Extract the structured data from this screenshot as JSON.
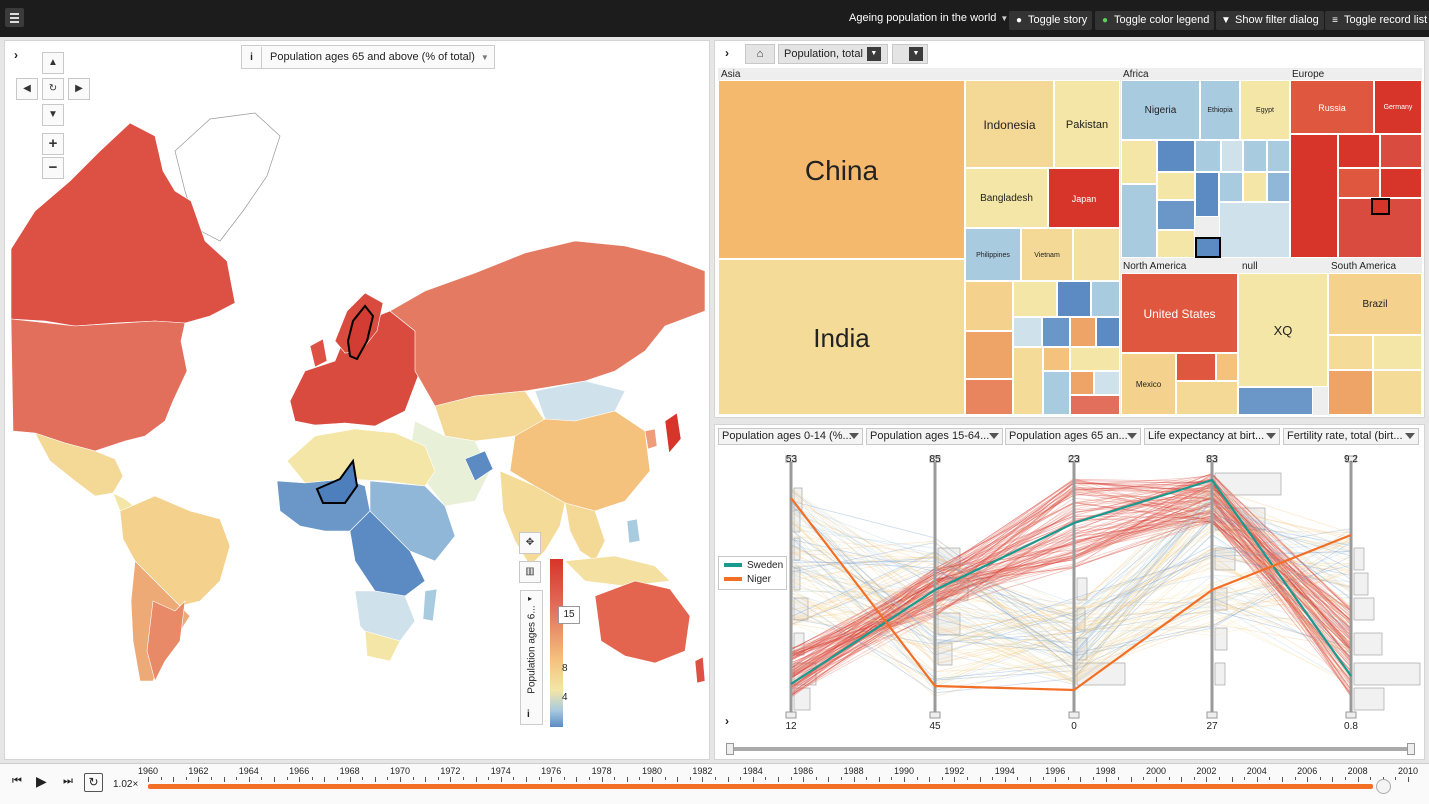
{
  "app": {
    "story_title": "Ageing population in the world",
    "buttons": {
      "toggle_story": "Toggle story",
      "toggle_color_legend": "Toggle color legend",
      "show_filter_dialog": "Show filter dialog",
      "toggle_record_list": "Toggle record list"
    }
  },
  "map": {
    "indicator": "Population ages 65 and above (% of total)",
    "legend_label": "Population ages 6...",
    "legend_ticks": [
      "15",
      "8",
      "4"
    ],
    "colors": {
      "high": "#d7342a",
      "upper": "#e2705d",
      "mid": "#f4c27d",
      "pale": "#f4e6a6",
      "low": "#a9cbe0",
      "lowest": "#5b8bc2"
    },
    "highlighted_countries": [
      "Sweden",
      "Niger"
    ]
  },
  "treemap": {
    "breadcrumb": "Population, total",
    "groups": [
      "Asia",
      "Africa",
      "Europe",
      "North America",
      "null",
      "South America"
    ],
    "labels": {
      "china": "China",
      "india": "India",
      "indonesia": "Indonesia",
      "pakistan": "Pakistan",
      "bangladesh": "Bangladesh",
      "japan": "Japan",
      "philippines": "Philippines",
      "vietnam": "Vietnam",
      "nigeria": "Nigeria",
      "ethiopia": "Ethiopia",
      "egypt": "Egypt",
      "russia": "Russia",
      "germany": "Germany",
      "united_states": "United States",
      "mexico": "Mexico",
      "xq": "XQ",
      "brazil": "Brazil"
    }
  },
  "parallel": {
    "axes": [
      {
        "header": "Population ages 0-14 (%...",
        "max": "53",
        "min": "12"
      },
      {
        "header": "Population ages 15-64...",
        "max": "85",
        "min": "45"
      },
      {
        "header": "Population ages 65 an...",
        "max": "23",
        "min": "0"
      },
      {
        "header": "Life expectancy at birt...",
        "max": "83",
        "min": "27"
      },
      {
        "header": "Fertility rate, total (birt...",
        "max": "9.2",
        "min": "0.8"
      }
    ],
    "legend": [
      {
        "name": "Sweden",
        "color": "#1a9a8e"
      },
      {
        "name": "Niger",
        "color": "#f36f25"
      }
    ]
  },
  "timeline": {
    "speed": "1.02×",
    "years": [
      "1960",
      "1962",
      "1964",
      "1966",
      "1968",
      "1970",
      "1972",
      "1974",
      "1976",
      "1978",
      "1980",
      "1982",
      "1984",
      "1986",
      "1988",
      "1990",
      "1992",
      "1994",
      "1996",
      "1998",
      "2000",
      "2002",
      "2004",
      "2006",
      "2008",
      "2010"
    ],
    "progress": 0.99,
    "accent": "#f36f25"
  }
}
